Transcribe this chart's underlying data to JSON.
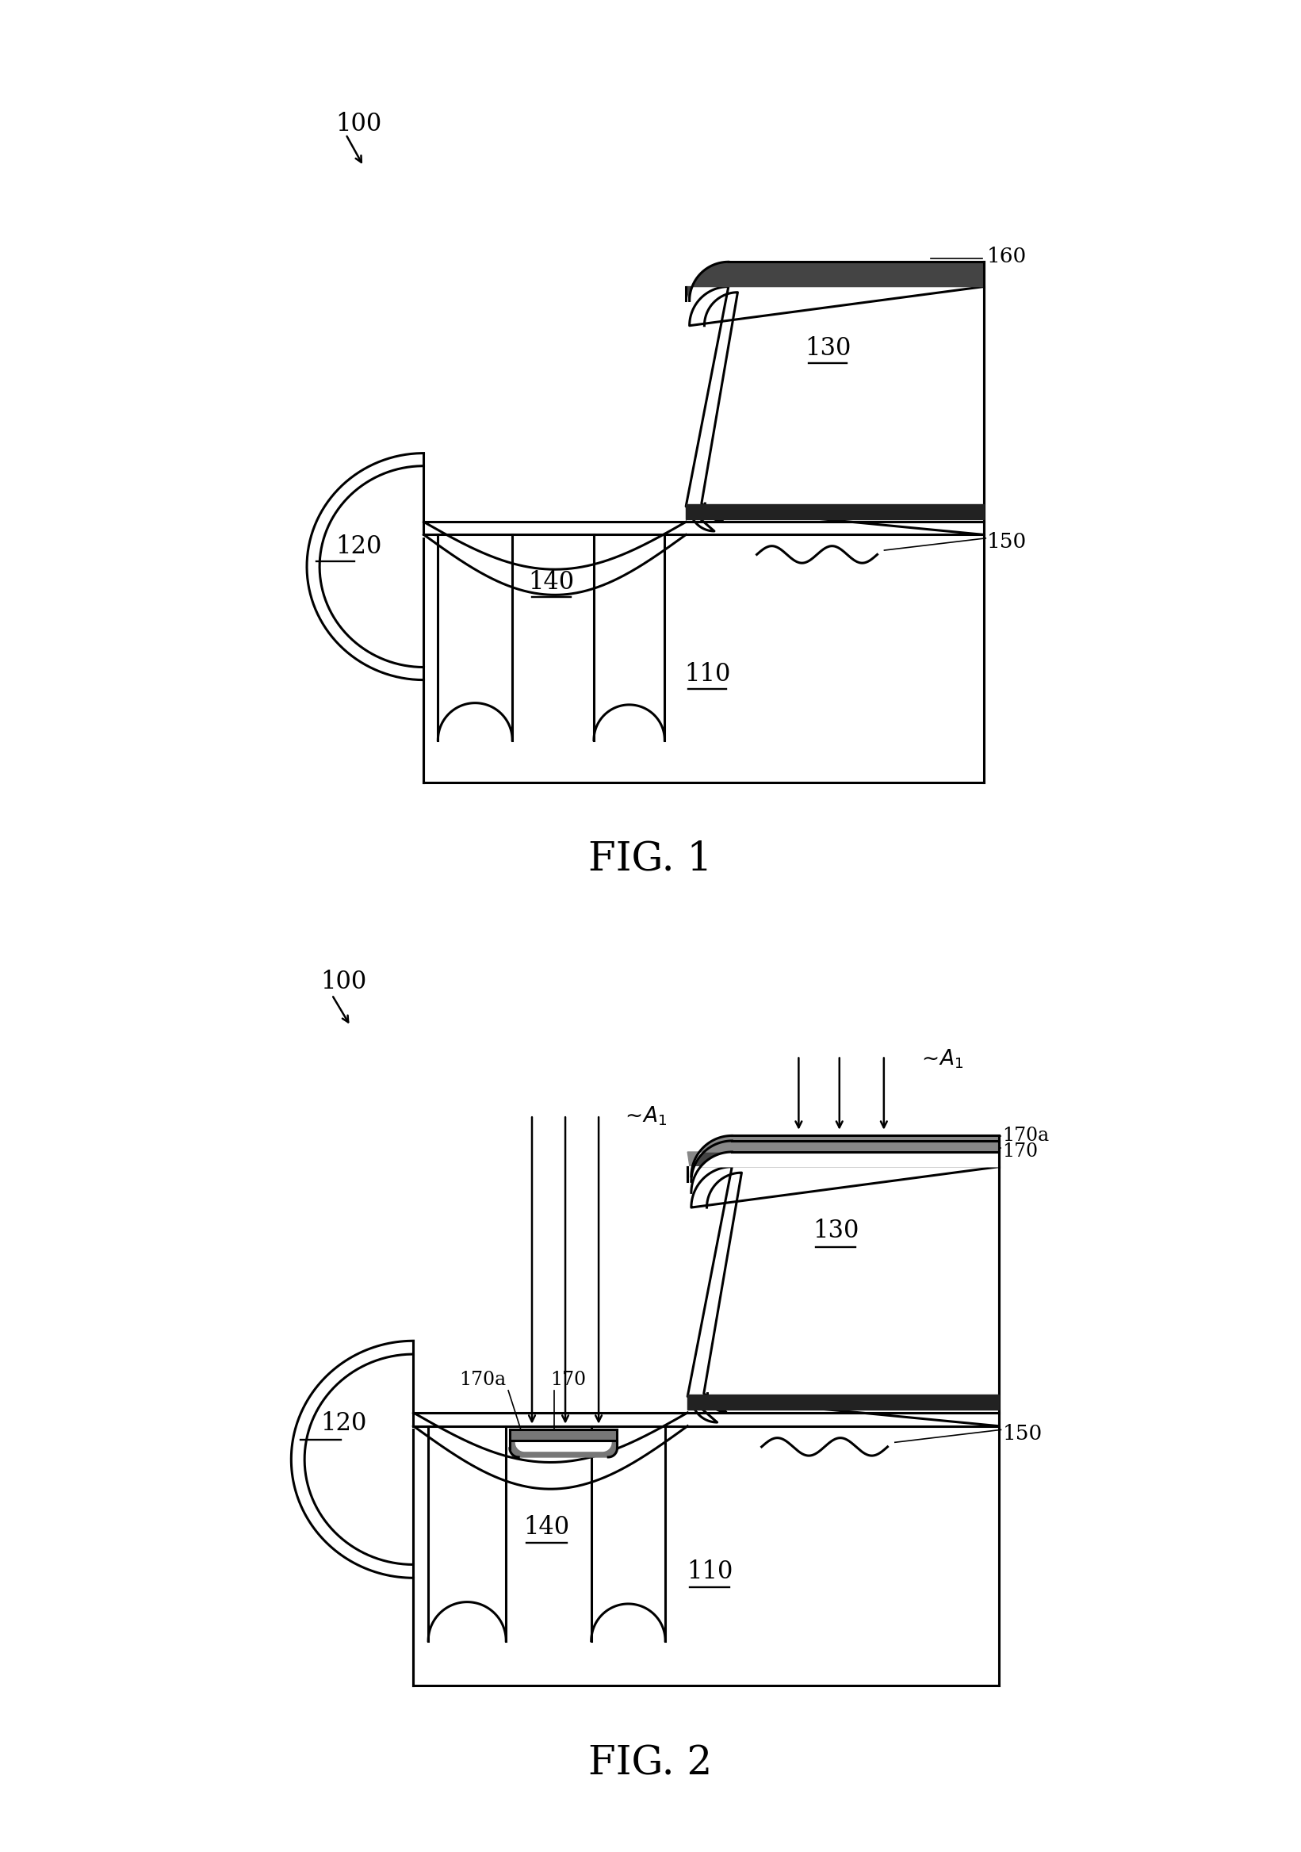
{
  "bg_color": "#ffffff",
  "lc": "#000000",
  "lw": 2.2,
  "lw_thick": 4.5,
  "fig1_label": "FIG. 1",
  "fig2_label": "FIG. 2",
  "label_100": "100",
  "label_110": "110",
  "label_120": "120",
  "label_130": "130",
  "label_140": "140",
  "label_150": "150",
  "label_160": "160",
  "label_170": "170",
  "label_170a": "170a",
  "label_A1": "A$_1$"
}
